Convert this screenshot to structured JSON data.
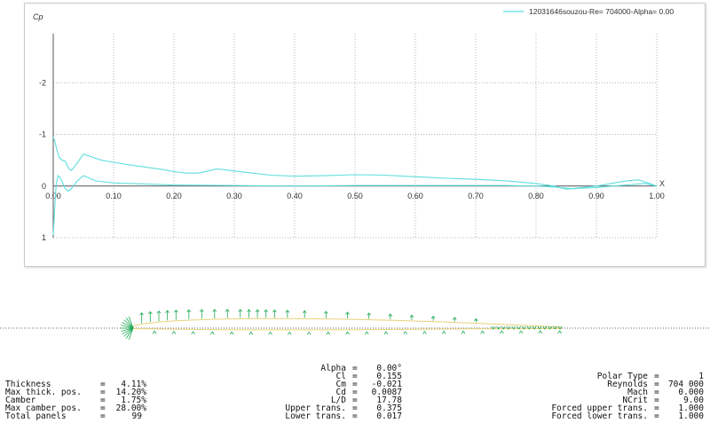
{
  "chart_data": {
    "type": "line",
    "ylabel": "Cp",
    "xlabel": "X",
    "xlim": [
      0,
      1
    ],
    "ylim": [
      -2.95,
      1.0
    ],
    "y_inverted": true,
    "grid": true,
    "x_ticks": [
      "0.00",
      "0.10",
      "0.20",
      "0.30",
      "0.40",
      "0.50",
      "0.60",
      "0.70",
      "0.80",
      "0.90",
      "1.00"
    ],
    "y_ticks": [
      {
        "value": -2,
        "label": "-2"
      },
      {
        "value": -1,
        "label": "-1"
      },
      {
        "value": 0,
        "label": "0"
      },
      {
        "value": 1,
        "label": "1"
      }
    ],
    "legend": {
      "placement": "top-right",
      "label": "12031646souzou-Re= 704000-Alpha= 0.00"
    },
    "series": [
      {
        "name": "upper",
        "color": "#5fdede",
        "x": [
          0.0,
          0.003,
          0.006,
          0.01,
          0.015,
          0.02,
          0.025,
          0.03,
          0.04,
          0.05,
          0.06,
          0.08,
          0.1,
          0.12,
          0.15,
          0.18,
          0.2,
          0.22,
          0.24,
          0.26,
          0.27,
          0.28,
          0.3,
          0.33,
          0.36,
          0.4,
          0.45,
          0.5,
          0.55,
          0.58,
          0.62,
          0.65,
          0.7,
          0.75,
          0.8,
          0.83,
          0.85,
          0.9,
          0.95,
          0.97,
          0.99,
          1.0
        ],
        "y": [
          -0.95,
          -0.85,
          -0.7,
          -0.55,
          -0.5,
          -0.48,
          -0.35,
          -0.3,
          -0.45,
          -0.62,
          -0.58,
          -0.5,
          -0.46,
          -0.42,
          -0.37,
          -0.32,
          -0.28,
          -0.25,
          -0.25,
          -0.3,
          -0.33,
          -0.32,
          -0.29,
          -0.25,
          -0.21,
          -0.19,
          -0.2,
          -0.22,
          -0.21,
          -0.19,
          -0.17,
          -0.15,
          -0.13,
          -0.1,
          -0.05,
          0.0,
          0.06,
          0.0,
          -0.1,
          -0.12,
          -0.04,
          0.0
        ]
      },
      {
        "name": "lower",
        "color": "#5fdede",
        "x": [
          0.0,
          0.002,
          0.005,
          0.008,
          0.012,
          0.016,
          0.02,
          0.025,
          0.03,
          0.04,
          0.05,
          0.07,
          0.1,
          0.15,
          0.2,
          0.3,
          0.4,
          0.5,
          0.6,
          0.7,
          0.75,
          0.8,
          0.83,
          0.86,
          0.9,
          0.95,
          0.98,
          1.0
        ],
        "y": [
          0.95,
          0.5,
          -0.05,
          -0.2,
          -0.15,
          -0.05,
          0.05,
          0.1,
          0.05,
          -0.1,
          -0.2,
          -0.1,
          -0.06,
          -0.04,
          -0.02,
          -0.01,
          0.0,
          -0.01,
          -0.01,
          -0.01,
          -0.01,
          0.0,
          0.02,
          0.05,
          0.03,
          -0.02,
          -0.05,
          0.0
        ]
      }
    ]
  },
  "geometry": {
    "labels": {
      "thickness": "Thickness",
      "max_thick_pos": "Max thick. pos.",
      "camber": "Camber",
      "max_camber_pos": "Max camber pos.",
      "total_panels": "Total panels"
    },
    "values": {
      "thickness": "4.11%",
      "max_thick_pos": "14.20%",
      "camber": "1.75%",
      "max_camber_pos": "28.00%",
      "total_panels": "99"
    }
  },
  "aero": {
    "labels": {
      "alpha": "Alpha",
      "cl": "Cl",
      "cm": "Cm",
      "cd": "Cd",
      "ld": "L/D",
      "upper_trans": "Upper trans.",
      "lower_trans": "Lower trans."
    },
    "values": {
      "alpha": "0.00°",
      "cl": "0.155",
      "cm": "-0.021",
      "cd": "0.0087",
      "ld": "17.78",
      "upper_trans": "0.375",
      "lower_trans": "0.017"
    }
  },
  "polar": {
    "labels": {
      "polar_type": "Polar Type",
      "reynolds": "Reynolds",
      "mach": "Mach",
      "ncrit": "NCrit",
      "forced_upper": "Forced upper trans.",
      "forced_lower": "Forced lower trans."
    },
    "values": {
      "polar_type": "1",
      "reynolds": "704 000",
      "mach": "0.000",
      "ncrit": "9.00",
      "forced_upper": "1.000",
      "forced_lower": "1.000"
    }
  },
  "equals_sign": "=",
  "colors": {
    "curve": "#5fdede",
    "foil": "#e8d27a",
    "vectors": "#1faa55",
    "grid": "#b5b5b5",
    "zero_line": "#555555"
  }
}
